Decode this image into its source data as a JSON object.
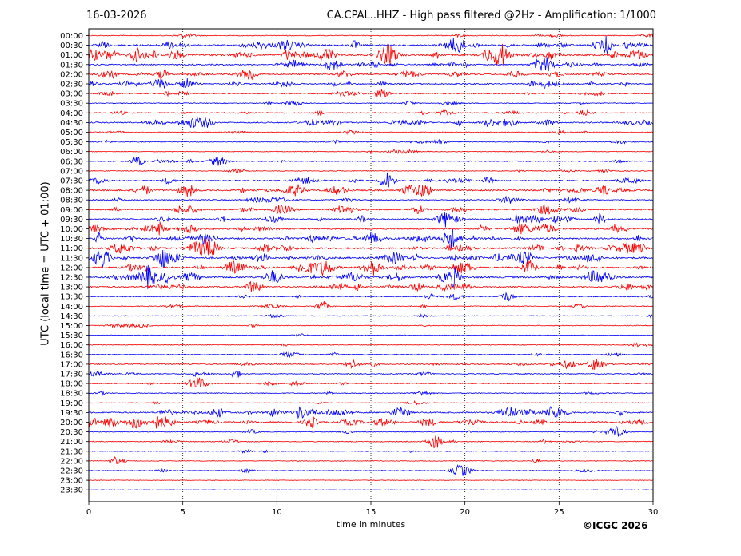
{
  "header": {
    "date": "16-03-2026",
    "title": "CA.CPAL..HHZ - High pass filtered @2Hz - Amplification: 1/1000"
  },
  "footer": {
    "copyright": "©ICGC 2026"
  },
  "chart_data": {
    "type": "line",
    "title": "CA.CPAL..HHZ - High pass filtered @2Hz - Amplification: 1/1000",
    "xlabel": "time in minutes",
    "ylabel": "UTC (local time = UTC + 01:00)",
    "xlim": [
      0,
      30
    ],
    "xticks": [
      0,
      5,
      10,
      15,
      20,
      25,
      30
    ],
    "vertical_gridlines": [
      5,
      10,
      15,
      20,
      25
    ],
    "grid": "vertical dotted",
    "colors": {
      "even_row": "#ff0000",
      "odd_row": "#0000ff"
    },
    "rows": [
      "00:00",
      "00:30",
      "01:00",
      "01:30",
      "02:00",
      "02:30",
      "03:00",
      "03:30",
      "04:00",
      "04:30",
      "05:00",
      "05:30",
      "06:00",
      "06:30",
      "07:00",
      "07:30",
      "08:00",
      "08:30",
      "09:00",
      "09:30",
      "10:00",
      "10:30",
      "11:00",
      "11:30",
      "12:00",
      "12:30",
      "13:00",
      "13:30",
      "14:00",
      "14:30",
      "15:00",
      "15:30",
      "16:00",
      "16:30",
      "17:00",
      "17:30",
      "18:00",
      "18:30",
      "19:00",
      "19:30",
      "20:00",
      "20:30",
      "21:00",
      "21:30",
      "22:00",
      "22:30",
      "23:00",
      "23:30"
    ],
    "activity": [
      0.5,
      2.2,
      2.8,
      1.4,
      1.6,
      1.6,
      1.1,
      0.6,
      1.0,
      1.5,
      0.5,
      0.7,
      0.4,
      0.7,
      0.4,
      1.4,
      2.0,
      0.9,
      1.6,
      1.6,
      1.9,
      2.4,
      2.2,
      2.6,
      2.4,
      2.4,
      1.7,
      0.8,
      0.6,
      0.3,
      0.5,
      0.1,
      0.3,
      0.5,
      1.1,
      0.8,
      0.6,
      0.6,
      0.3,
      1.8,
      2.2,
      0.4,
      0.5,
      0.3,
      0.2,
      0.3,
      0.0,
      0.0
    ],
    "events": [
      {
        "row": "00:30",
        "t": 10.5
      },
      {
        "row": "00:30",
        "t": 19.5
      },
      {
        "row": "00:30",
        "t": 27.5
      },
      {
        "row": "01:00",
        "t": 2.5
      },
      {
        "row": "01:00",
        "t": 4.6
      },
      {
        "row": "01:00",
        "t": 12.6
      },
      {
        "row": "01:00",
        "t": 15.8
      },
      {
        "row": "01:00",
        "t": 21.8
      },
      {
        "row": "01:30",
        "t": 13.0
      },
      {
        "row": "01:30",
        "t": 24.2
      },
      {
        "row": "02:00",
        "t": 8.6
      },
      {
        "row": "02:30",
        "t": 3.8
      },
      {
        "row": "04:30",
        "t": 5.6
      },
      {
        "row": "04:30",
        "t": 6.3
      },
      {
        "row": "06:30",
        "t": 2.6
      },
      {
        "row": "06:30",
        "t": 6.9
      },
      {
        "row": "07:30",
        "t": 15.8
      },
      {
        "row": "08:00",
        "t": 17.0
      },
      {
        "row": "08:00",
        "t": 17.8
      },
      {
        "row": "09:00",
        "t": 13.6
      },
      {
        "row": "09:30",
        "t": 19.0
      },
      {
        "row": "10:00",
        "t": 24.3
      },
      {
        "row": "10:30",
        "t": 15.0
      },
      {
        "row": "10:30",
        "t": 19.2
      },
      {
        "row": "11:00",
        "t": 1.6
      },
      {
        "row": "11:00",
        "t": 5.6
      },
      {
        "row": "11:00",
        "t": 6.3
      },
      {
        "row": "11:30",
        "t": 3.9
      },
      {
        "row": "11:30",
        "t": 16.2
      },
      {
        "row": "11:30",
        "t": 23.2
      },
      {
        "row": "12:00",
        "t": 15.1
      },
      {
        "row": "12:00",
        "t": 23.4
      },
      {
        "row": "12:30",
        "t": 3.2
      },
      {
        "row": "12:30",
        "t": 9.8
      },
      {
        "row": "12:30",
        "t": 19.4
      },
      {
        "row": "13:00",
        "t": 8.8
      },
      {
        "row": "13:30",
        "t": 22.2
      },
      {
        "row": "14:00",
        "t": 12.4
      },
      {
        "row": "17:00",
        "t": 25.5
      },
      {
        "row": "17:00",
        "t": 27.0
      },
      {
        "row": "17:30",
        "t": 7.8
      },
      {
        "row": "18:00",
        "t": 5.8
      },
      {
        "row": "19:30",
        "t": 11.4
      },
      {
        "row": "19:30",
        "t": 16.5
      },
      {
        "row": "19:30",
        "t": 22.3
      },
      {
        "row": "19:30",
        "t": 24.7
      },
      {
        "row": "20:00",
        "t": 1.2
      },
      {
        "row": "20:00",
        "t": 2.5
      },
      {
        "row": "20:00",
        "t": 3.6
      },
      {
        "row": "20:00",
        "t": 11.8
      },
      {
        "row": "20:30",
        "t": 28.0
      },
      {
        "row": "21:00",
        "t": 18.4
      },
      {
        "row": "22:00",
        "t": 1.4
      },
      {
        "row": "22:30",
        "t": 19.8
      }
    ]
  }
}
